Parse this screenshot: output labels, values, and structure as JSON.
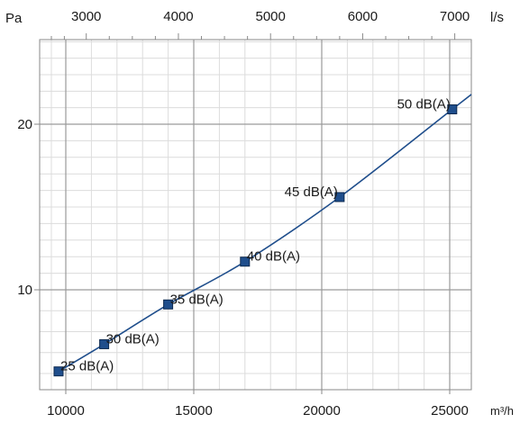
{
  "chart_data": {
    "type": "line",
    "x_bottom": {
      "label": "m³/h",
      "range": [
        9000,
        26000
      ],
      "ticks": [
        10000,
        15000,
        20000,
        25000
      ],
      "tick_labels": [
        "10000",
        "15000",
        "20000",
        "25000"
      ]
    },
    "x_top": {
      "label": "l/s",
      "ticks": [
        3000,
        4000,
        5000,
        6000,
        7000
      ],
      "tick_labels": [
        "3000",
        "4000",
        "5000",
        "6000",
        "7000"
      ]
    },
    "y": {
      "label": "Pa",
      "range": [
        6,
        26
      ],
      "ticks": [
        10,
        20
      ],
      "tick_labels": [
        "10",
        "20"
      ],
      "grid": true
    },
    "series": [
      {
        "color": "#1f4e8c",
        "points": [
          {
            "x": 9500,
            "y": 6.1,
            "label": "25 dB(A)"
          },
          {
            "x": 11500,
            "y": 7.4,
            "label": "30 dB(A)"
          },
          {
            "x": 14000,
            "y": 9.3,
            "label": "35 dB(A)"
          },
          {
            "x": 17000,
            "y": 11.7,
            "label": "40 dB(A)"
          },
          {
            "x": 20700,
            "y": 15.6,
            "label": "45 dB(A)"
          },
          {
            "x": 25100,
            "y": 20.9,
            "label": "50 dB(A)"
          }
        ]
      }
    ]
  }
}
